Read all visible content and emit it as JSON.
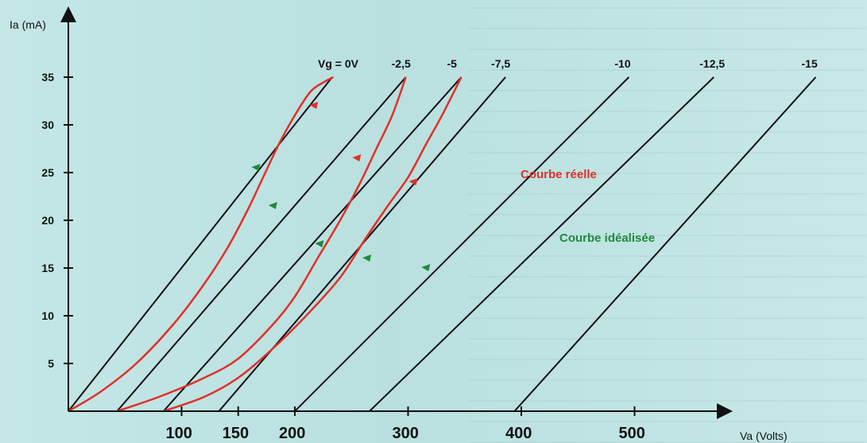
{
  "chart_data": {
    "type": "line",
    "xlabel": "Va (Volts)",
    "ylabel": "Ia (mA)",
    "xlim": [
      0,
      580
    ],
    "ylim": [
      0,
      37
    ],
    "x_ticks": [
      100,
      150,
      200,
      300,
      400,
      500
    ],
    "y_ticks": [
      5,
      10,
      15,
      20,
      25,
      30,
      35
    ],
    "grid": false,
    "colors": {
      "ideal_lines": "#111111",
      "real_curve": "#e0302a",
      "ideal_arrow": "#1f8a3a"
    },
    "ideal_lines": [
      {
        "vg": "Vg = 0V",
        "x": [
          0,
          233
        ],
        "y": [
          0,
          35
        ]
      },
      {
        "vg": "-2,5",
        "x": [
          43,
          298
        ],
        "y": [
          0,
          35
        ]
      },
      {
        "vg": "-5",
        "x": [
          84,
          347
        ],
        "y": [
          0,
          35
        ]
      },
      {
        "vg": "-7,5",
        "x": [
          133,
          386
        ],
        "y": [
          0,
          35
        ]
      },
      {
        "vg": "-10",
        "x": [
          200,
          495
        ],
        "y": [
          0,
          35
        ]
      },
      {
        "vg": "-12,5",
        "x": [
          266,
          570
        ],
        "y": [
          0,
          35
        ]
      },
      {
        "vg": "-15",
        "x": [
          394,
          660
        ],
        "y": [
          0,
          35
        ]
      }
    ],
    "real_curves": [
      {
        "x": [
          0,
          28,
          60,
          92,
          118,
          140,
          158,
          172,
          186,
          200,
          214,
          226,
          234
        ],
        "y": [
          0,
          2,
          5,
          9,
          13,
          17,
          21,
          24.5,
          28,
          31,
          33.5,
          34.5,
          35
        ]
      },
      {
        "x": [
          43,
          80,
          120,
          150,
          180,
          200,
          220,
          240,
          258,
          272,
          286,
          298
        ],
        "y": [
          0,
          1.5,
          3.5,
          5.5,
          9,
          12,
          16,
          20,
          24,
          27.5,
          31,
          35
        ]
      },
      {
        "x": [
          84,
          120,
          150,
          180,
          210,
          240,
          262,
          282,
          300,
          316,
          330,
          347
        ],
        "y": [
          0,
          1.5,
          3.5,
          6.5,
          10,
          14,
          18,
          21.5,
          24.5,
          28,
          31,
          35
        ]
      }
    ],
    "arrows_red": [
      {
        "x": 217,
        "y": 32
      },
      {
        "x": 255,
        "y": 26.5
      },
      {
        "x": 305,
        "y": 24
      }
    ],
    "arrows_green": [
      {
        "x": 166,
        "y": 25.5
      },
      {
        "x": 181,
        "y": 21.5
      },
      {
        "x": 222,
        "y": 17.5
      },
      {
        "x": 264,
        "y": 16
      },
      {
        "x": 316,
        "y": 15
      }
    ],
    "annotations": {
      "real": "Courbe réelle",
      "ideal": "Courbe idéalisée"
    }
  }
}
